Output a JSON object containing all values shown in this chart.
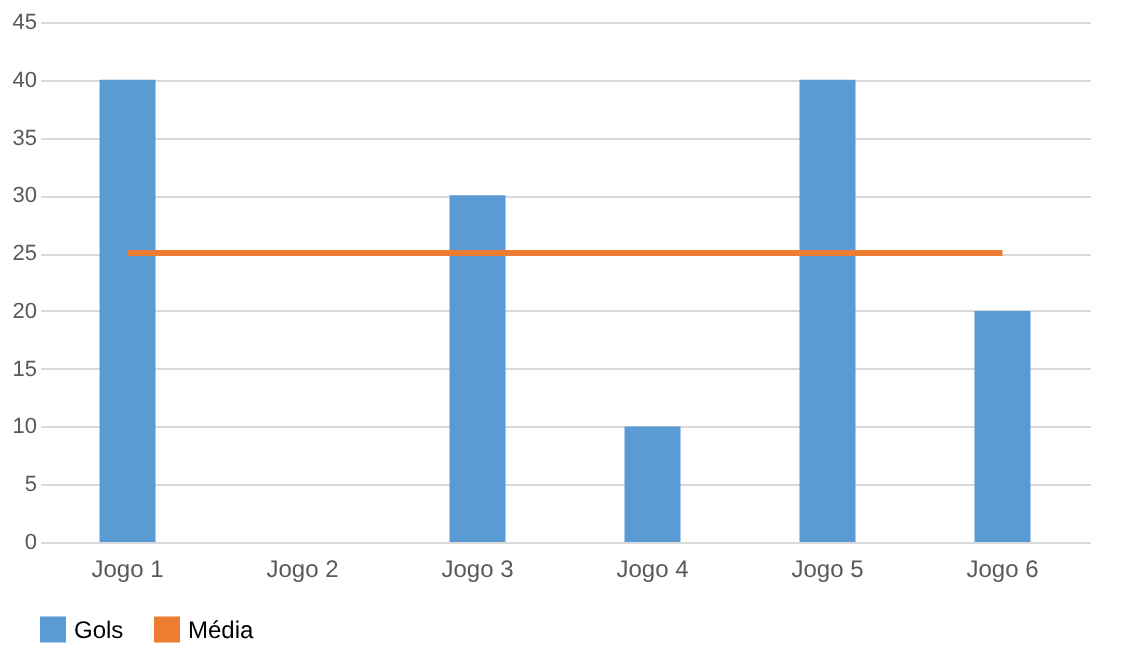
{
  "chart_data": {
    "type": "bar",
    "categories": [
      "Jogo 1",
      "Jogo 2",
      "Jogo 3",
      "Jogo 4",
      "Jogo 5",
      "Jogo 6"
    ],
    "series": [
      {
        "name": "Gols",
        "color": "#5b9bd5",
        "values": [
          40,
          0,
          30,
          10,
          40,
          20
        ]
      },
      {
        "name": "Média",
        "type": "line",
        "color": "#ed7d31",
        "values": [
          25,
          25,
          25,
          25,
          25,
          25
        ]
      }
    ],
    "ylim": [
      0,
      45
    ],
    "yticks": [
      0,
      5,
      10,
      15,
      20,
      25,
      30,
      35,
      40,
      45
    ],
    "grid": "y",
    "legend": "bottom"
  }
}
